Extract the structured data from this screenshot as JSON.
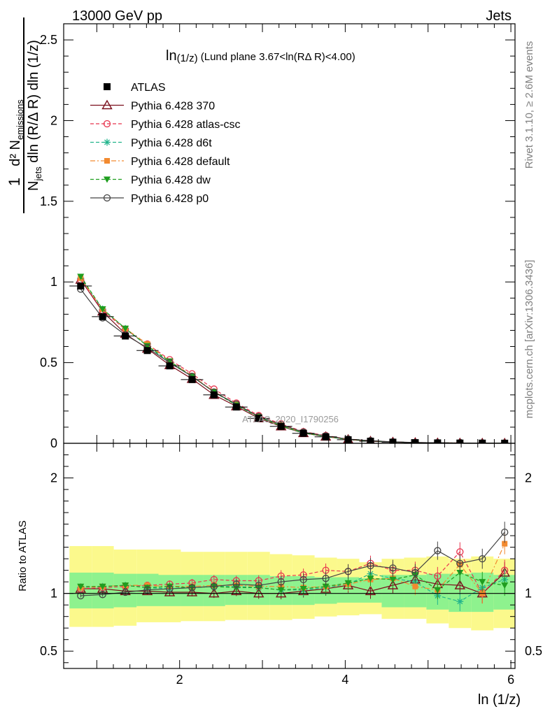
{
  "header": {
    "left": "13000 GeV pp",
    "right": "Jets"
  },
  "side_labels": {
    "rivet": "Rivet 3.1.10, ≥ 2.6M events",
    "mcplots": "mcplots.cern.ch [arXiv:1306.3436]"
  },
  "main_plot": {
    "title_prefix": "ln",
    "title_sub": "(1/z)",
    "title_rest": " (Lund plane 3.67<ln(RΔ R)<4.00)",
    "watermark": "ATLAS_2020_I1790256",
    "ylabel_top": "d² N",
    "ylabel_top_sub": "emissions",
    "ylabel_bottom": "dln (R/Δ R) dln (1/z)",
    "ylabel_N": "N",
    "ylabel_N_sub": "jets",
    "ylabel_one": "1",
    "ytick_labels": [
      "0",
      "0.5",
      "1",
      "1.5",
      "2",
      "2.5"
    ]
  },
  "ratio_plot": {
    "ylabel": "Ratio to ATLAS",
    "ytick_labels": [
      "0.5",
      "1",
      "2"
    ],
    "ytick_labels_right": [
      "0.5",
      "1",
      "2"
    ]
  },
  "xaxis": {
    "label": "ln (1/z)",
    "tick_labels": [
      "2",
      "4",
      "6"
    ]
  },
  "legend": [
    {
      "label": "ATLAS",
      "color": "#000000",
      "marker": "filled-square",
      "line": "none"
    },
    {
      "label": "Pythia 6.428 370",
      "color": "#7a0f1c",
      "marker": "open-triangle",
      "line": "solid"
    },
    {
      "label": "Pythia 6.428 atlas-csc",
      "color": "#e8344e",
      "marker": "open-circle",
      "line": "dashed"
    },
    {
      "label": "Pythia 6.428 d6t",
      "color": "#22b48c",
      "marker": "star",
      "line": "dashed"
    },
    {
      "label": "Pythia 6.428 default",
      "color": "#f28a30",
      "marker": "filled-square-small",
      "line": "dashdot"
    },
    {
      "label": "Pythia 6.428 dw",
      "color": "#1f9e1f",
      "marker": "filled-triangle-down",
      "line": "dashed"
    },
    {
      "label": "Pythia 6.428 p0",
      "color": "#444444",
      "marker": "open-circle",
      "line": "solid"
    }
  ],
  "chart_data": {
    "type": "line",
    "title": "ln(1/z) (Lund plane 3.67<ln(RΔ R)<4.00)",
    "xlabel": "ln (1/z)",
    "ylabel": "1/N_jets d² N_emissions / dln (R/Δ R) dln (1/z)",
    "xlim": [
      0.6,
      6.05
    ],
    "ylim": [
      0,
      2.6
    ],
    "ratio_ylim": [
      0.35,
      2.3
    ],
    "ratio_ylabel": "Ratio to ATLAS",
    "grid": false,
    "legend_position": "top-left",
    "x": [
      0.805,
      1.07,
      1.345,
      1.61,
      1.88,
      2.15,
      2.415,
      2.685,
      2.955,
      3.225,
      3.495,
      3.765,
      4.035,
      4.305,
      4.575,
      4.845,
      5.115,
      5.385,
      5.655,
      5.925
    ],
    "x_edges": [
      0.67,
      0.94,
      1.205,
      1.48,
      1.745,
      2.015,
      2.285,
      2.55,
      2.82,
      3.09,
      3.36,
      3.63,
      3.9,
      4.17,
      4.44,
      4.71,
      4.98,
      5.25,
      5.52,
      5.79,
      6.06
    ],
    "data": {
      "name": "ATLAS",
      "values": [
        0.975,
        0.785,
        0.665,
        0.575,
        0.48,
        0.395,
        0.3,
        0.225,
        0.155,
        0.105,
        0.062,
        0.04,
        0.022,
        0.013,
        0.007,
        0.004,
        0.0025,
        0.0015,
        0.001,
        0.0006
      ],
      "band_total": [
        [
          0.71,
          1.41
        ],
        [
          0.71,
          1.41
        ],
        [
          0.72,
          1.38
        ],
        [
          0.75,
          1.38
        ],
        [
          0.75,
          1.38
        ],
        [
          0.76,
          1.36
        ],
        [
          0.76,
          1.36
        ],
        [
          0.77,
          1.36
        ],
        [
          0.77,
          1.36
        ],
        [
          0.77,
          1.34
        ],
        [
          0.78,
          1.33
        ],
        [
          0.8,
          1.31
        ],
        [
          0.81,
          1.3
        ],
        [
          0.82,
          1.27
        ],
        [
          0.78,
          1.3
        ],
        [
          0.78,
          1.31
        ],
        [
          0.74,
          1.32
        ],
        [
          0.7,
          1.3
        ],
        [
          0.68,
          1.32
        ],
        [
          0.7,
          1.3
        ]
      ],
      "band_stat": [
        [
          0.87,
          1.18
        ],
        [
          0.87,
          1.18
        ],
        [
          0.88,
          1.17
        ],
        [
          0.89,
          1.17
        ],
        [
          0.89,
          1.16
        ],
        [
          0.89,
          1.16
        ],
        [
          0.89,
          1.16
        ],
        [
          0.9,
          1.16
        ],
        [
          0.9,
          1.16
        ],
        [
          0.9,
          1.15
        ],
        [
          0.9,
          1.15
        ],
        [
          0.91,
          1.14
        ],
        [
          0.92,
          1.14
        ],
        [
          0.92,
          1.13
        ],
        [
          0.88,
          1.16
        ],
        [
          0.88,
          1.16
        ],
        [
          0.86,
          1.17
        ],
        [
          0.84,
          1.17
        ],
        [
          0.84,
          1.18
        ],
        [
          0.86,
          1.16
        ]
      ]
    },
    "series": [
      {
        "name": "Pythia 6.428 370",
        "ratio": [
          1.04,
          1.04,
          1.02,
          1.02,
          1.01,
          1.01,
          1.0,
          1.02,
          1.0,
          1.0,
          1.02,
          1.04,
          1.07,
          1.02,
          1.07,
          1.12,
          1.08,
          1.07,
          1.0,
          1.18
        ]
      },
      {
        "name": "Pythia 6.428 atlas-csc",
        "ratio": [
          1.04,
          1.05,
          1.06,
          1.07,
          1.08,
          1.09,
          1.12,
          1.11,
          1.11,
          1.15,
          1.16,
          1.2,
          1.19,
          1.26,
          1.2,
          1.2,
          1.15,
          1.36,
          1.0,
          1.2
        ]
      },
      {
        "name": "Pythia 6.428 d6t",
        "ratio": [
          1.05,
          1.06,
          1.07,
          1.05,
          1.04,
          1.05,
          1.06,
          1.06,
          1.05,
          1.03,
          1.03,
          1.05,
          1.08,
          1.17,
          1.13,
          1.1,
          0.98,
          0.93,
          1.05,
          1.12
        ]
      },
      {
        "name": "Pythia 6.428 default",
        "ratio": [
          1.05,
          1.06,
          1.07,
          1.07,
          1.06,
          1.06,
          1.07,
          1.07,
          1.06,
          1.06,
          1.05,
          1.06,
          1.08,
          1.12,
          1.13,
          1.06,
          1.03,
          1.25,
          1.0,
          1.43
        ]
      },
      {
        "name": "Pythia 6.428 dw",
        "ratio": [
          1.06,
          1.06,
          1.07,
          1.05,
          1.06,
          1.05,
          1.06,
          1.05,
          1.05,
          1.03,
          1.04,
          1.06,
          1.09,
          1.13,
          1.12,
          1.16,
          1.03,
          1.18,
          1.1,
          1.07
        ]
      },
      {
        "name": "Pythia 6.428 p0",
        "ratio": [
          0.98,
          0.99,
          1.01,
          1.03,
          1.04,
          1.05,
          1.06,
          1.08,
          1.07,
          1.1,
          1.12,
          1.13,
          1.19,
          1.24,
          1.22,
          1.18,
          1.37,
          1.26,
          1.3,
          1.53
        ]
      }
    ]
  }
}
